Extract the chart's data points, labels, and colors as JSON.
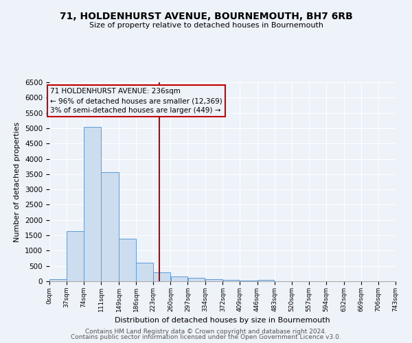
{
  "title1": "71, HOLDENHURST AVENUE, BOURNEMOUTH, BH7 6RB",
  "title2": "Size of property relative to detached houses in Bournemouth",
  "xlabel": "Distribution of detached houses by size in Bournemouth",
  "ylabel": "Number of detached properties",
  "footer1": "Contains HM Land Registry data © Crown copyright and database right 2024.",
  "footer2": "Contains public sector information licensed under the Open Government Licence v3.0.",
  "annotation_title": "71 HOLDENHURST AVENUE: 236sqm",
  "annotation_line1": "← 96% of detached houses are smaller (12,369)",
  "annotation_line2": "3% of semi-detached houses are larger (449) →",
  "property_line_x": 236,
  "bar_edges": [
    0,
    37,
    74,
    111,
    149,
    186,
    223,
    260,
    297,
    334,
    372,
    409,
    446,
    483,
    520,
    557,
    594,
    632,
    669,
    706,
    743
  ],
  "bar_heights": [
    60,
    1640,
    5050,
    3560,
    1390,
    610,
    300,
    155,
    110,
    75,
    50,
    30,
    50,
    0,
    0,
    0,
    0,
    0,
    0,
    0
  ],
  "bar_color": "#ccddf0",
  "bar_edge_color": "#5b9bd5",
  "property_line_color": "#c00000",
  "background_color": "#eef2f9",
  "grid_color": "#ffffff",
  "ylim": [
    0,
    6500
  ],
  "xlim": [
    0,
    743
  ],
  "yticks": [
    0,
    500,
    1000,
    1500,
    2000,
    2500,
    3000,
    3500,
    4000,
    4500,
    5000,
    5500,
    6000,
    6500
  ]
}
